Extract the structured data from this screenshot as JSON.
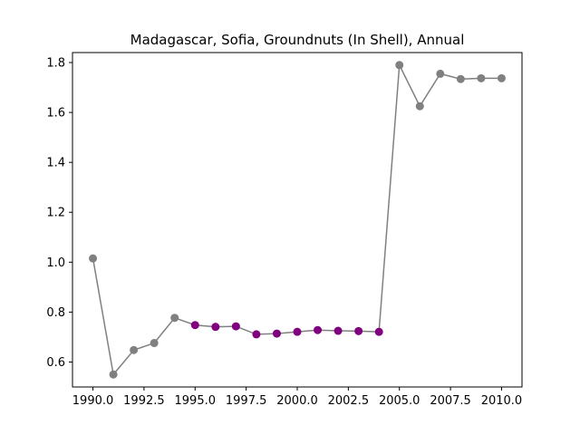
{
  "chart_data": {
    "type": "line",
    "title": "Madagascar, Sofia, Groundnuts (In Shell), Annual",
    "xlabel": "",
    "ylabel": "",
    "xlim": [
      1989.0,
      2011.0
    ],
    "ylim": [
      0.5,
      1.84
    ],
    "grid": false,
    "legend": "none",
    "xticks": [
      1990.0,
      1992.5,
      1995.0,
      1997.5,
      2000.0,
      2002.5,
      2005.0,
      2007.5,
      2010.0
    ],
    "xtick_labels": [
      "1990.0",
      "1992.5",
      "1995.0",
      "1997.5",
      "2000.0",
      "2002.5",
      "2005.0",
      "2007.5",
      "2010.0"
    ],
    "yticks": [
      0.6,
      0.8,
      1.0,
      1.2,
      1.4,
      1.6,
      1.8
    ],
    "ytick_labels": [
      "0.6",
      "0.8",
      "1.0",
      "1.2",
      "1.4",
      "1.6",
      "1.8"
    ],
    "line_color": "#808080",
    "series": [
      {
        "x": [
          1990,
          1991,
          1992,
          1993,
          1994,
          1995,
          1996,
          1997,
          1998,
          1999,
          2000,
          2001,
          2002,
          2003,
          2004,
          2005,
          2006,
          2007,
          2008,
          2009,
          2010
        ],
        "values": [
          1.015,
          0.55,
          0.648,
          0.676,
          0.777,
          0.748,
          0.741,
          0.743,
          0.711,
          0.714,
          0.721,
          0.728,
          0.725,
          0.724,
          0.721,
          1.79,
          1.625,
          1.755,
          1.734,
          1.737,
          1.737
        ],
        "colors": [
          "#808080",
          "#808080",
          "#808080",
          "#808080",
          "#808080",
          "#800080",
          "#800080",
          "#800080",
          "#800080",
          "#800080",
          "#800080",
          "#800080",
          "#800080",
          "#800080",
          "#800080",
          "#808080",
          "#808080",
          "#808080",
          "#808080",
          "#808080",
          "#808080"
        ]
      }
    ]
  }
}
